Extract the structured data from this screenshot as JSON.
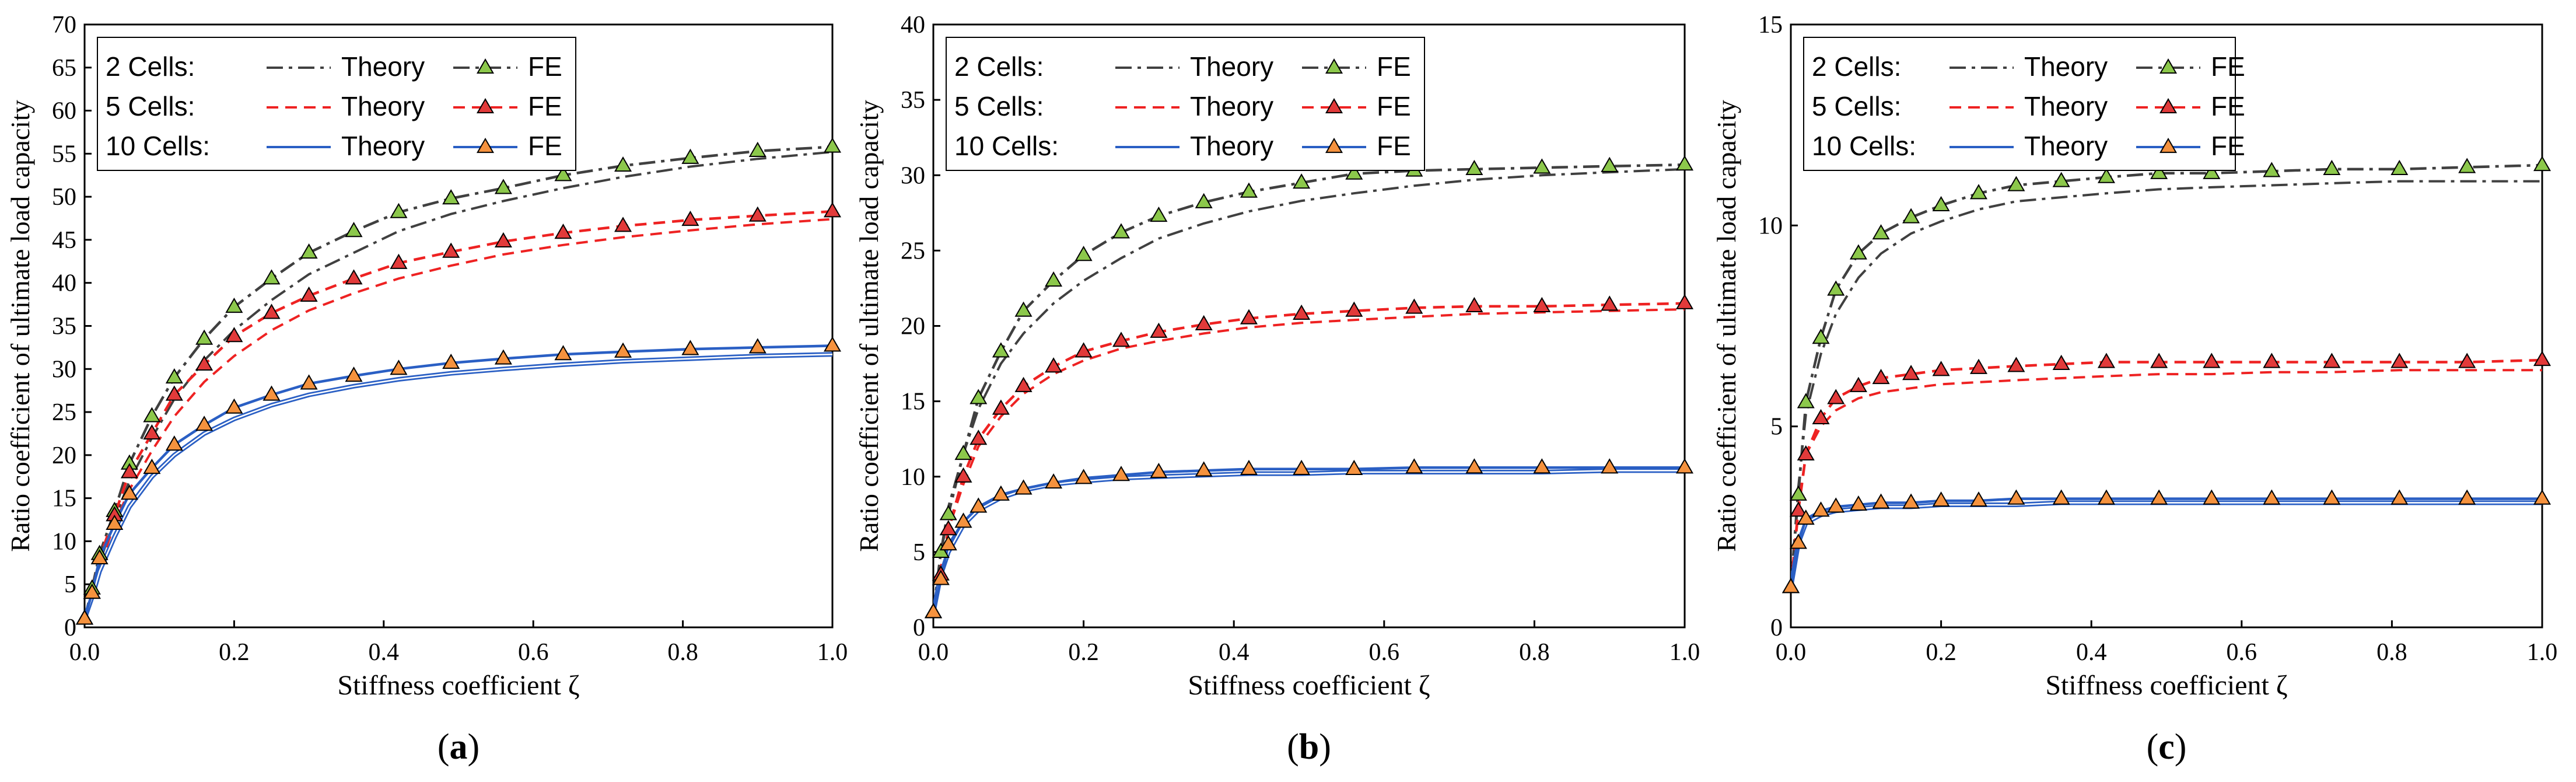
{
  "figure": {
    "colors": {
      "cells2": "#404040",
      "cells5": "#ee2222",
      "cells10": "#2a5fc4",
      "marker2": "#8cc84b",
      "marker5": "#e23a3a",
      "marker10": "#f5923e",
      "axis": "#000000"
    }
  },
  "chart_data": [
    {
      "type": "line",
      "panel_label": "(a)",
      "panel_letter": "a",
      "xlabel": "Stiffness coefficient ζ",
      "ylabel": "Ratio coefficient of ultimate load capacity",
      "xlim": [
        0,
        1
      ],
      "ylim": [
        0,
        70
      ],
      "xticks": [
        0,
        0.2,
        0.4,
        0.6,
        0.8,
        1
      ],
      "xtick_labels": [
        "0.0",
        "0.2",
        "0.4",
        "0.6",
        "0.8",
        "1.0"
      ],
      "yticks": [
        0,
        5,
        10,
        15,
        20,
        25,
        30,
        35,
        40,
        45,
        50,
        55,
        60,
        65,
        70
      ],
      "ytick_labels": [
        "0",
        "5",
        "10",
        "15",
        "20",
        "25",
        "30",
        "35",
        "40",
        "45",
        "50",
        "55",
        "60",
        "65",
        "70"
      ],
      "legend": {
        "position": "top-left",
        "rows": [
          {
            "group": "2 Cells:",
            "theory": "Theory",
            "fe": "FE"
          },
          {
            "group": "5 Cells:",
            "theory": "Theory",
            "fe": "FE"
          },
          {
            "group": "10 Cells:",
            "theory": "Theory",
            "fe": "FE"
          }
        ]
      },
      "series": [
        {
          "name": "2 Cells Theory",
          "kind": "theory",
          "cells": 2,
          "x": [
            0,
            0.01,
            0.02,
            0.04,
            0.06,
            0.09,
            0.12,
            0.16,
            0.2,
            0.25,
            0.3,
            0.36,
            0.42,
            0.49,
            0.56,
            0.64,
            0.72,
            0.81,
            0.9,
            1.0
          ],
          "y": [
            1,
            4.5,
            7.5,
            12.5,
            17,
            22,
            26.5,
            31,
            34.5,
            38,
            41,
            43.5,
            46,
            48,
            49.5,
            51,
            52.3,
            53.5,
            54.4,
            55.2
          ]
        },
        {
          "name": "2 Cells FE",
          "kind": "fe",
          "cells": 2,
          "x": [
            0,
            0.01,
            0.02,
            0.04,
            0.06,
            0.09,
            0.12,
            0.16,
            0.2,
            0.25,
            0.3,
            0.36,
            0.42,
            0.49,
            0.56,
            0.64,
            0.72,
            0.81,
            0.9,
            1.0
          ],
          "y": [
            1,
            4.5,
            8.5,
            13.5,
            19,
            24.5,
            29,
            33.5,
            37.2,
            40.5,
            43.5,
            46,
            48.2,
            49.8,
            51,
            52.5,
            53.6,
            54.5,
            55.3,
            55.8
          ]
        },
        {
          "name": "5 Cells Theory",
          "kind": "theory",
          "cells": 5,
          "x": [
            0,
            0.01,
            0.02,
            0.04,
            0.06,
            0.09,
            0.12,
            0.16,
            0.2,
            0.25,
            0.3,
            0.36,
            0.42,
            0.49,
            0.56,
            0.64,
            0.72,
            0.81,
            0.9,
            1.0
          ],
          "y": [
            1,
            4,
            7,
            12,
            16,
            20.5,
            24.5,
            28.5,
            31.5,
            34.5,
            36.8,
            38.8,
            40.5,
            42,
            43.3,
            44.4,
            45.3,
            46.1,
            46.8,
            47.4
          ]
        },
        {
          "name": "5 Cells FE",
          "kind": "fe",
          "cells": 5,
          "x": [
            0,
            0.01,
            0.02,
            0.04,
            0.06,
            0.09,
            0.12,
            0.16,
            0.2,
            0.25,
            0.3,
            0.36,
            0.42,
            0.49,
            0.56,
            0.64,
            0.72,
            0.81,
            0.9,
            1.0
          ],
          "y": [
            1,
            4,
            8,
            13,
            18,
            22.5,
            27,
            30.5,
            33.8,
            36.5,
            38.5,
            40.5,
            42.3,
            43.6,
            44.8,
            45.8,
            46.6,
            47.3,
            47.8,
            48.3
          ]
        },
        {
          "name": "10 Cells Theory",
          "kind": "theory",
          "cells": 10,
          "x": [
            0,
            0.01,
            0.02,
            0.04,
            0.06,
            0.09,
            0.12,
            0.16,
            0.2,
            0.25,
            0.3,
            0.36,
            0.42,
            0.49,
            0.56,
            0.64,
            0.72,
            0.81,
            0.9,
            1.0
          ],
          "y": [
            1,
            3.5,
            6.5,
            10.5,
            14,
            17.5,
            20,
            22.5,
            24.2,
            25.8,
            27,
            28,
            28.8,
            29.5,
            30,
            30.5,
            30.9,
            31.2,
            31.5,
            31.7
          ]
        },
        {
          "name": "10 Cells FE",
          "kind": "fe",
          "cells": 10,
          "x": [
            0,
            0.01,
            0.02,
            0.04,
            0.06,
            0.09,
            0.12,
            0.16,
            0.2,
            0.25,
            0.3,
            0.36,
            0.42,
            0.49,
            0.56,
            0.64,
            0.72,
            0.81,
            0.9,
            1.0
          ],
          "y": [
            1,
            4,
            8,
            12,
            15.5,
            18.5,
            21.2,
            23.5,
            25.5,
            27,
            28.3,
            29.2,
            30,
            30.7,
            31.2,
            31.7,
            32,
            32.3,
            32.5,
            32.7
          ]
        }
      ]
    },
    {
      "type": "line",
      "panel_label": "(b)",
      "panel_letter": "b",
      "xlabel": "Stiffness coefficient ζ",
      "ylabel": "Ratio coefficient of ultimate load capacity",
      "xlim": [
        0,
        1
      ],
      "ylim": [
        0,
        40
      ],
      "xticks": [
        0,
        0.2,
        0.4,
        0.6,
        0.8,
        1
      ],
      "xtick_labels": [
        "0.0",
        "0.2",
        "0.4",
        "0.6",
        "0.8",
        "1.0"
      ],
      "yticks": [
        0,
        5,
        10,
        15,
        20,
        25,
        30,
        35,
        40
      ],
      "ytick_labels": [
        "0",
        "5",
        "10",
        "15",
        "20",
        "25",
        "30",
        "35",
        "40"
      ],
      "legend": {
        "position": "top-left",
        "rows": [
          {
            "group": "2 Cells:",
            "theory": "Theory",
            "fe": "FE"
          },
          {
            "group": "5 Cells:",
            "theory": "Theory",
            "fe": "FE"
          },
          {
            "group": "10 Cells:",
            "theory": "Theory",
            "fe": "FE"
          }
        ]
      },
      "series": [
        {
          "name": "2 Cells Theory",
          "kind": "theory",
          "cells": 2,
          "x": [
            0,
            0.01,
            0.02,
            0.04,
            0.06,
            0.09,
            0.12,
            0.16,
            0.2,
            0.25,
            0.3,
            0.36,
            0.42,
            0.49,
            0.56,
            0.64,
            0.72,
            0.81,
            0.9,
            1.0
          ],
          "y": [
            1,
            5,
            8,
            11.5,
            14.5,
            17.5,
            19.5,
            21.5,
            23,
            24.5,
            25.8,
            26.8,
            27.6,
            28.3,
            28.8,
            29.3,
            29.7,
            30,
            30.2,
            30.4
          ]
        },
        {
          "name": "2 Cells FE",
          "kind": "fe",
          "cells": 2,
          "x": [
            0,
            0.01,
            0.02,
            0.04,
            0.06,
            0.09,
            0.12,
            0.16,
            0.2,
            0.25,
            0.3,
            0.36,
            0.42,
            0.49,
            0.56,
            0.64,
            0.72,
            0.81,
            0.9,
            1.0
          ],
          "y": [
            1,
            5,
            7.5,
            11.5,
            15.2,
            18.3,
            21,
            23,
            24.7,
            26.2,
            27.3,
            28.2,
            28.9,
            29.5,
            30.1,
            30.3,
            30.4,
            30.5,
            30.6,
            30.7
          ]
        },
        {
          "name": "5 Cells Theory",
          "kind": "theory",
          "cells": 5,
          "x": [
            0,
            0.01,
            0.02,
            0.04,
            0.06,
            0.09,
            0.12,
            0.16,
            0.2,
            0.25,
            0.3,
            0.36,
            0.42,
            0.49,
            0.56,
            0.64,
            0.72,
            0.81,
            0.9,
            1.0
          ],
          "y": [
            1,
            4,
            6.5,
            9.5,
            12,
            14,
            15.5,
            16.8,
            17.7,
            18.5,
            19,
            19.5,
            19.9,
            20.2,
            20.4,
            20.6,
            20.8,
            20.9,
            21,
            21.1
          ]
        },
        {
          "name": "5 Cells FE",
          "kind": "fe",
          "cells": 5,
          "x": [
            0,
            0.01,
            0.02,
            0.04,
            0.06,
            0.09,
            0.12,
            0.16,
            0.2,
            0.25,
            0.3,
            0.36,
            0.42,
            0.49,
            0.56,
            0.64,
            0.72,
            0.81,
            0.9,
            1.0
          ],
          "y": [
            1,
            3.5,
            6.5,
            10,
            12.5,
            14.5,
            16,
            17.3,
            18.3,
            19,
            19.6,
            20.1,
            20.5,
            20.8,
            21,
            21.2,
            21.3,
            21.3,
            21.4,
            21.5
          ]
        },
        {
          "name": "10 Cells Theory",
          "kind": "theory",
          "cells": 10,
          "x": [
            0,
            0.01,
            0.02,
            0.04,
            0.06,
            0.09,
            0.12,
            0.16,
            0.2,
            0.25,
            0.3,
            0.36,
            0.42,
            0.49,
            0.56,
            0.64,
            0.72,
            0.81,
            0.9,
            1.0
          ],
          "y": [
            1,
            3.5,
            5,
            6.8,
            7.8,
            8.6,
            9.1,
            9.5,
            9.7,
            9.9,
            10,
            10.1,
            10.2,
            10.2,
            10.3,
            10.3,
            10.3,
            10.3,
            10.4,
            10.4
          ]
        },
        {
          "name": "10 Cells FE",
          "kind": "fe",
          "cells": 10,
          "x": [
            0,
            0.01,
            0.02,
            0.04,
            0.06,
            0.09,
            0.12,
            0.16,
            0.2,
            0.25,
            0.3,
            0.36,
            0.42,
            0.49,
            0.56,
            0.64,
            0.72,
            0.81,
            0.9,
            1.0
          ],
          "y": [
            1,
            3.2,
            5.5,
            7,
            8,
            8.8,
            9.2,
            9.6,
            9.9,
            10.1,
            10.3,
            10.4,
            10.5,
            10.5,
            10.5,
            10.6,
            10.6,
            10.6,
            10.6,
            10.6
          ]
        }
      ]
    },
    {
      "type": "line",
      "panel_label": "(c)",
      "panel_letter": "c",
      "xlabel": "Stiffness coefficient ζ",
      "ylabel": "Ratio coefficient of ultimate load capacity",
      "xlim": [
        0,
        1
      ],
      "ylim": [
        0,
        15
      ],
      "xticks": [
        0,
        0.2,
        0.4,
        0.6,
        0.8,
        1
      ],
      "xtick_labels": [
        "0.0",
        "0.2",
        "0.4",
        "0.6",
        "0.8",
        "1.0"
      ],
      "yticks": [
        0,
        5,
        10,
        15
      ],
      "ytick_labels": [
        "0",
        "5",
        "10",
        "15"
      ],
      "legend": {
        "position": "top-left",
        "rows": [
          {
            "group": "2 Cells:",
            "theory": "Theory",
            "fe": "FE"
          },
          {
            "group": "5 Cells:",
            "theory": "Theory",
            "fe": "FE"
          },
          {
            "group": "10 Cells:",
            "theory": "Theory",
            "fe": "FE"
          }
        ]
      },
      "series": [
        {
          "name": "2 Cells Theory",
          "kind": "theory",
          "cells": 2,
          "x": [
            0,
            0.01,
            0.02,
            0.04,
            0.06,
            0.09,
            0.12,
            0.16,
            0.2,
            0.25,
            0.3,
            0.36,
            0.42,
            0.49,
            0.56,
            0.64,
            0.72,
            0.81,
            0.9,
            1.0
          ],
          "y": [
            1,
            3.5,
            5.3,
            6.8,
            7.8,
            8.7,
            9.3,
            9.8,
            10.1,
            10.4,
            10.6,
            10.7,
            10.8,
            10.9,
            10.95,
            11,
            11.05,
            11.1,
            11.1,
            11.1
          ]
        },
        {
          "name": "2 Cells FE",
          "kind": "fe",
          "cells": 2,
          "x": [
            0,
            0.01,
            0.02,
            0.04,
            0.06,
            0.09,
            0.12,
            0.16,
            0.2,
            0.25,
            0.3,
            0.36,
            0.42,
            0.49,
            0.56,
            0.64,
            0.72,
            0.81,
            0.9,
            1.0
          ],
          "y": [
            1,
            3.3,
            5.6,
            7.2,
            8.4,
            9.3,
            9.8,
            10.2,
            10.5,
            10.8,
            11,
            11.1,
            11.2,
            11.3,
            11.3,
            11.35,
            11.4,
            11.4,
            11.45,
            11.5
          ]
        },
        {
          "name": "5 Cells Theory",
          "kind": "theory",
          "cells": 5,
          "x": [
            0,
            0.01,
            0.02,
            0.04,
            0.06,
            0.09,
            0.12,
            0.16,
            0.2,
            0.25,
            0.3,
            0.36,
            0.42,
            0.49,
            0.56,
            0.64,
            0.72,
            0.81,
            0.9,
            1.0
          ],
          "y": [
            1,
            3,
            4.3,
            5,
            5.4,
            5.7,
            5.85,
            5.95,
            6.05,
            6.1,
            6.15,
            6.2,
            6.25,
            6.3,
            6.3,
            6.35,
            6.35,
            6.4,
            6.4,
            6.4
          ]
        },
        {
          "name": "5 Cells FE",
          "kind": "fe",
          "cells": 5,
          "x": [
            0,
            0.01,
            0.02,
            0.04,
            0.06,
            0.09,
            0.12,
            0.16,
            0.2,
            0.25,
            0.3,
            0.36,
            0.42,
            0.49,
            0.56,
            0.64,
            0.72,
            0.81,
            0.9,
            1.0
          ],
          "y": [
            1,
            2.9,
            4.3,
            5.2,
            5.7,
            6,
            6.2,
            6.3,
            6.4,
            6.45,
            6.5,
            6.55,
            6.6,
            6.6,
            6.6,
            6.6,
            6.6,
            6.6,
            6.6,
            6.65
          ]
        },
        {
          "name": "10 Cells Theory",
          "kind": "theory",
          "cells": 10,
          "x": [
            0,
            0.01,
            0.02,
            0.04,
            0.06,
            0.09,
            0.12,
            0.16,
            0.2,
            0.25,
            0.3,
            0.36,
            0.42,
            0.49,
            0.56,
            0.64,
            0.72,
            0.81,
            0.9,
            1.0
          ],
          "y": [
            1,
            2.1,
            2.6,
            2.8,
            2.9,
            2.95,
            3,
            3,
            3.05,
            3.05,
            3.05,
            3.1,
            3.1,
            3.1,
            3.1,
            3.1,
            3.1,
            3.1,
            3.1,
            3.1
          ]
        },
        {
          "name": "10 Cells FE",
          "kind": "fe",
          "cells": 10,
          "x": [
            0,
            0.01,
            0.02,
            0.04,
            0.06,
            0.09,
            0.12,
            0.16,
            0.2,
            0.25,
            0.3,
            0.36,
            0.42,
            0.49,
            0.56,
            0.64,
            0.72,
            0.81,
            0.9,
            1.0
          ],
          "y": [
            1,
            2.1,
            2.7,
            2.9,
            3,
            3.05,
            3.1,
            3.1,
            3.15,
            3.15,
            3.2,
            3.2,
            3.2,
            3.2,
            3.2,
            3.2,
            3.2,
            3.2,
            3.2,
            3.2
          ]
        }
      ]
    }
  ]
}
